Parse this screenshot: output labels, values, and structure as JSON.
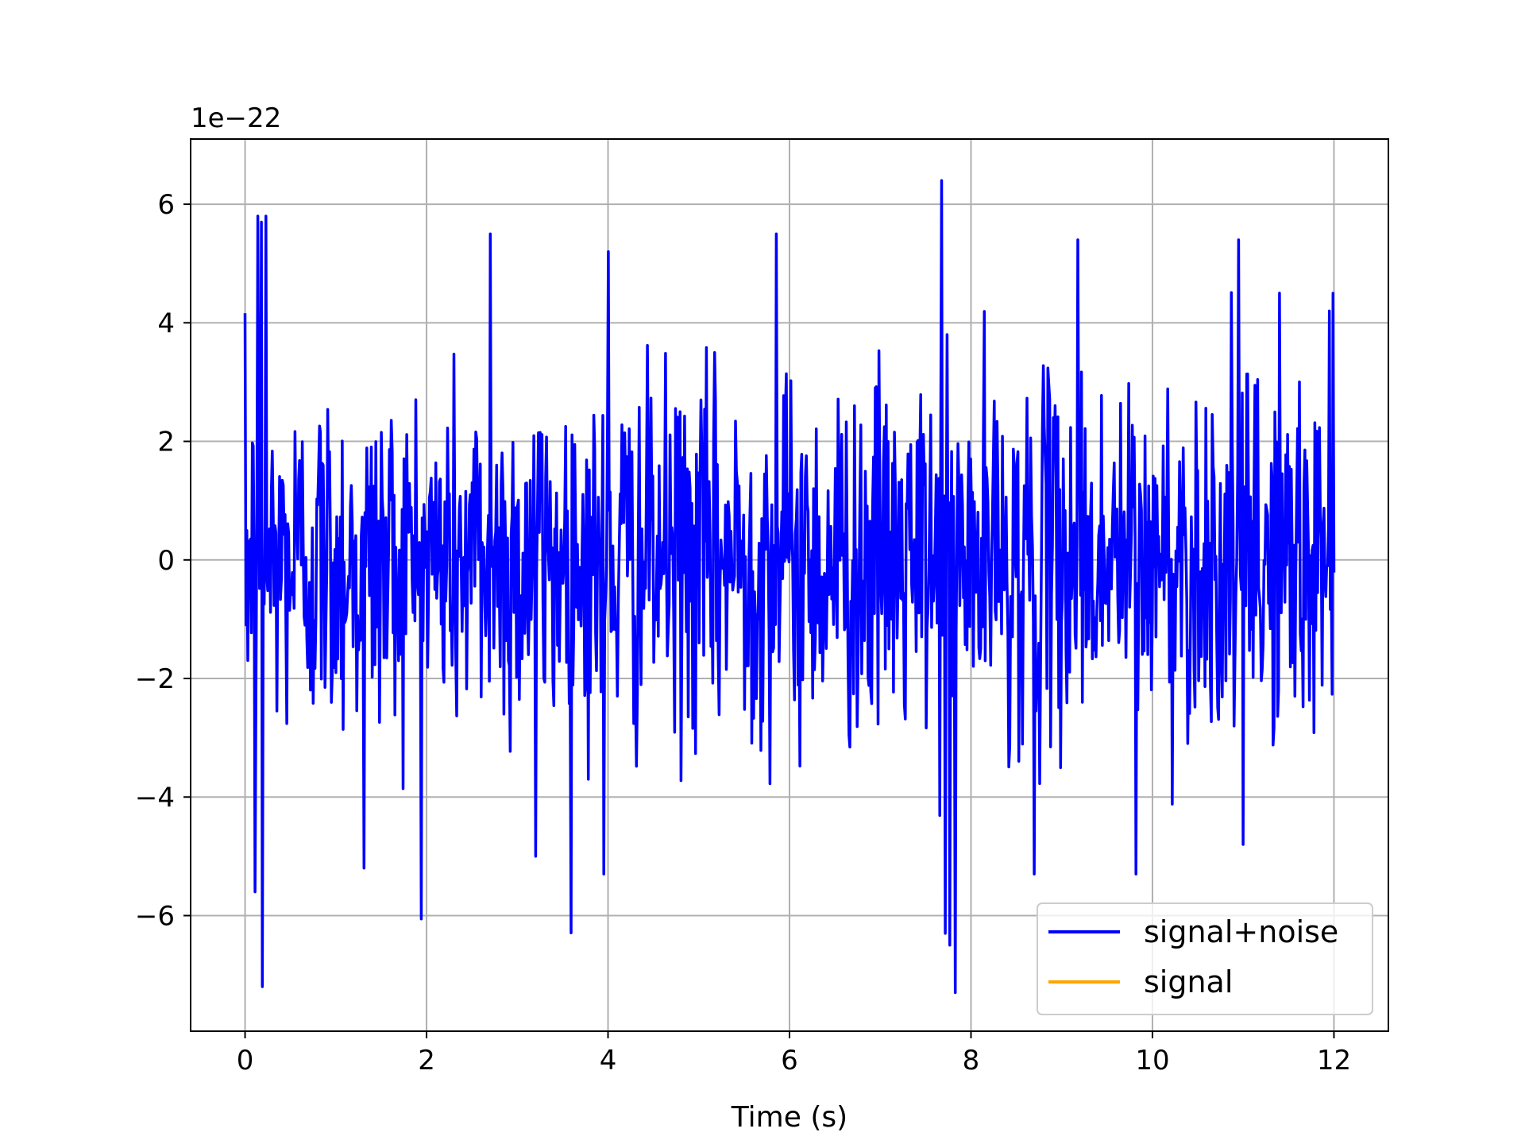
{
  "chart_data": {
    "type": "line",
    "title": "",
    "xlabel": "Time (s)",
    "ylabel": "",
    "y_scale_factor_label": "1e−22",
    "xlim": [
      -0.6,
      12.6
    ],
    "ylim": [
      -7.95,
      7.1
    ],
    "x_ticks": [
      0,
      2,
      4,
      6,
      8,
      10,
      12
    ],
    "x_tick_labels": [
      "0",
      "2",
      "4",
      "6",
      "8",
      "10",
      "12"
    ],
    "y_ticks": [
      -6,
      -4,
      -2,
      0,
      2,
      4,
      6
    ],
    "y_tick_labels": [
      "−6",
      "−4",
      "−2",
      "0",
      "2",
      "4",
      "6"
    ],
    "grid": true,
    "legend_position": "lower-right",
    "series": [
      {
        "name": "signal+noise",
        "color": "#0000ff",
        "x_range": [
          0,
          12
        ],
        "sample_count": 1200,
        "approx_std": 1.5,
        "approx_min": -7.3,
        "approx_max": 6.4,
        "extreme_points": [
          {
            "x": 0.14,
            "y": 5.8
          },
          {
            "x": 0.18,
            "y": 5.7
          },
          {
            "x": 0.23,
            "y": 5.8
          },
          {
            "x": 0.19,
            "y": -7.2
          },
          {
            "x": 0.11,
            "y": -5.6
          },
          {
            "x": 1.31,
            "y": -5.2
          },
          {
            "x": 2.7,
            "y": 5.5
          },
          {
            "x": 3.2,
            "y": -5.0
          },
          {
            "x": 4.0,
            "y": 5.2
          },
          {
            "x": 3.95,
            "y": -5.3
          },
          {
            "x": 5.85,
            "y": 5.5
          },
          {
            "x": 7.68,
            "y": 6.4
          },
          {
            "x": 7.72,
            "y": -6.3
          },
          {
            "x": 7.77,
            "y": -6.5
          },
          {
            "x": 7.83,
            "y": -7.3
          },
          {
            "x": 8.7,
            "y": -5.3
          },
          {
            "x": 9.18,
            "y": 5.4
          },
          {
            "x": 9.82,
            "y": -5.3
          },
          {
            "x": 10.95,
            "y": 5.4
          },
          {
            "x": 11.0,
            "y": -4.8
          },
          {
            "x": 11.4,
            "y": 4.5
          },
          {
            "x": 11.95,
            "y": 4.2
          }
        ]
      },
      {
        "name": "signal",
        "color": "#ffa500",
        "values_summary": "not visible beneath signal+noise"
      }
    ]
  }
}
